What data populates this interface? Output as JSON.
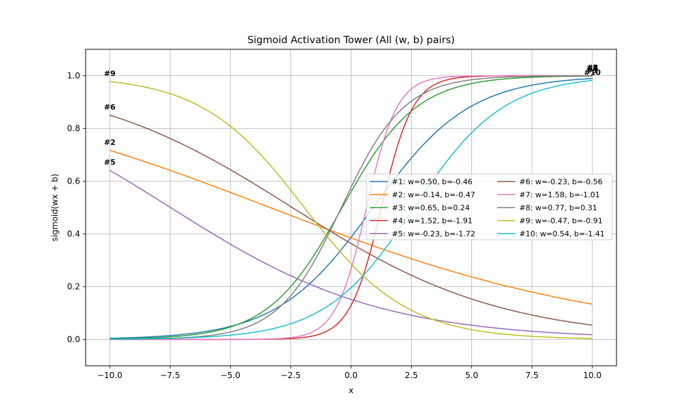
{
  "chart_data": {
    "type": "line",
    "title": "Sigmoid Activation Tower (All (w, b) pairs)",
    "xlabel": "x",
    "ylabel": "sigmoid(wx + b)",
    "xlim": [
      -11,
      11
    ],
    "ylim": [
      -0.1,
      1.1
    ],
    "x_range": [
      -10,
      10
    ],
    "grid": true,
    "legend_location": "center-right",
    "legend_columns": 2,
    "x_ticks": [
      -10.0,
      -7.5,
      -5.0,
      -2.5,
      0.0,
      2.5,
      5.0,
      7.5,
      10.0
    ],
    "x_tick_labels": [
      "−10.0",
      "−7.5",
      "−5.0",
      "−2.5",
      "0.0",
      "2.5",
      "5.0",
      "7.5",
      "10.0"
    ],
    "y_ticks": [
      0.0,
      0.2,
      0.4,
      0.6,
      0.8,
      1.0
    ],
    "y_tick_labels": [
      "0.0",
      "0.2",
      "0.4",
      "0.6",
      "0.8",
      "1.0"
    ],
    "series": [
      {
        "name": "#1: w=0.50, b=-0.46",
        "tag": "#1",
        "w": 0.5,
        "b": -0.46,
        "color": "#1f77b4"
      },
      {
        "name": "#2: w=-0.14, b=-0.47",
        "tag": "#2",
        "w": -0.14,
        "b": -0.47,
        "color": "#ff7f0e"
      },
      {
        "name": "#3: w=0.65, b=0.24",
        "tag": "#3",
        "w": 0.65,
        "b": 0.24,
        "color": "#2ca02c"
      },
      {
        "name": "#4: w=1.52, b=-1.91",
        "tag": "#4",
        "w": 1.52,
        "b": -1.91,
        "color": "#d62728"
      },
      {
        "name": "#5: w=-0.23, b=-1.72",
        "tag": "#5",
        "w": -0.23,
        "b": -1.72,
        "color": "#9467bd"
      },
      {
        "name": "#6: w=-0.23, b=-0.56",
        "tag": "#6",
        "w": -0.23,
        "b": -0.56,
        "color": "#8c564b"
      },
      {
        "name": "#7: w=1.58, b=-1.01",
        "tag": "#7",
        "w": 1.58,
        "b": -1.01,
        "color": "#e377c2"
      },
      {
        "name": "#8: w=0.77, b=0.31",
        "tag": "#8",
        "w": 0.77,
        "b": 0.31,
        "color": "#7f7f7f"
      },
      {
        "name": "#9: w=-0.47, b=-0.91",
        "tag": "#9",
        "w": -0.47,
        "b": -0.91,
        "color": "#bcbd22"
      },
      {
        "name": "#10: w=0.54, b=-1.41",
        "tag": "#10",
        "w": 0.54,
        "b": -1.41,
        "color": "#17becf"
      }
    ]
  }
}
